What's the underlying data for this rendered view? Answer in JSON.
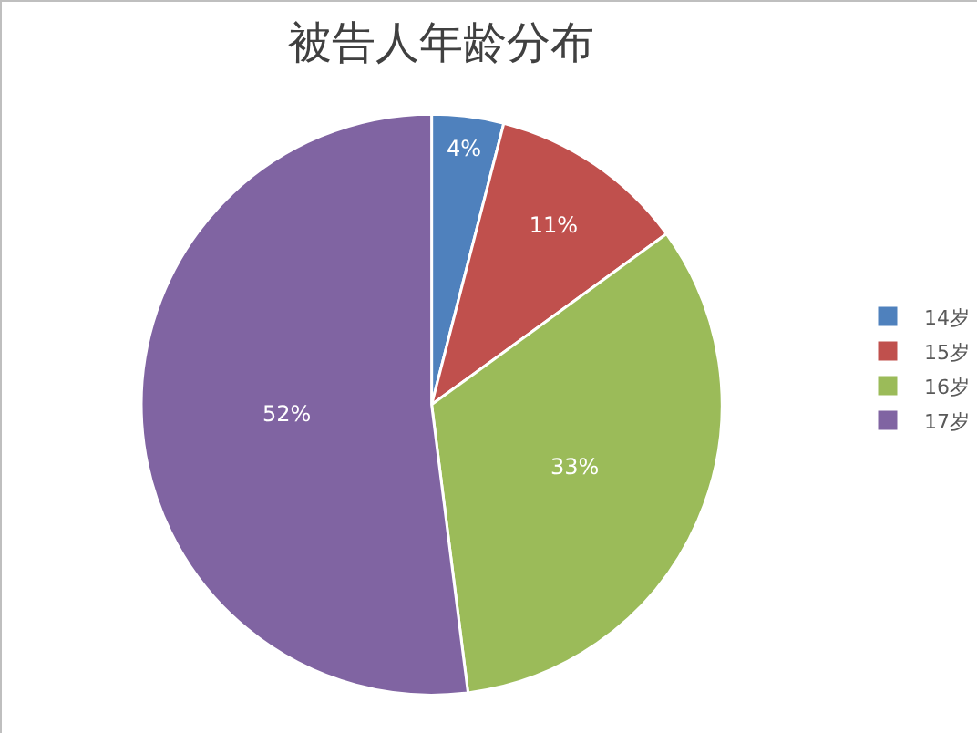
{
  "chart_data": {
    "type": "pie",
    "title": "被告人年龄分布",
    "categories": [
      "14岁",
      "15岁",
      "16岁",
      "17岁"
    ],
    "values": [
      4,
      11,
      33,
      52
    ],
    "colors": [
      "#4f81bd",
      "#c0504d",
      "#9bbb59",
      "#8064a2"
    ],
    "value_labels": [
      "4%",
      "11%",
      "33%",
      "52%"
    ],
    "legend": "right"
  }
}
